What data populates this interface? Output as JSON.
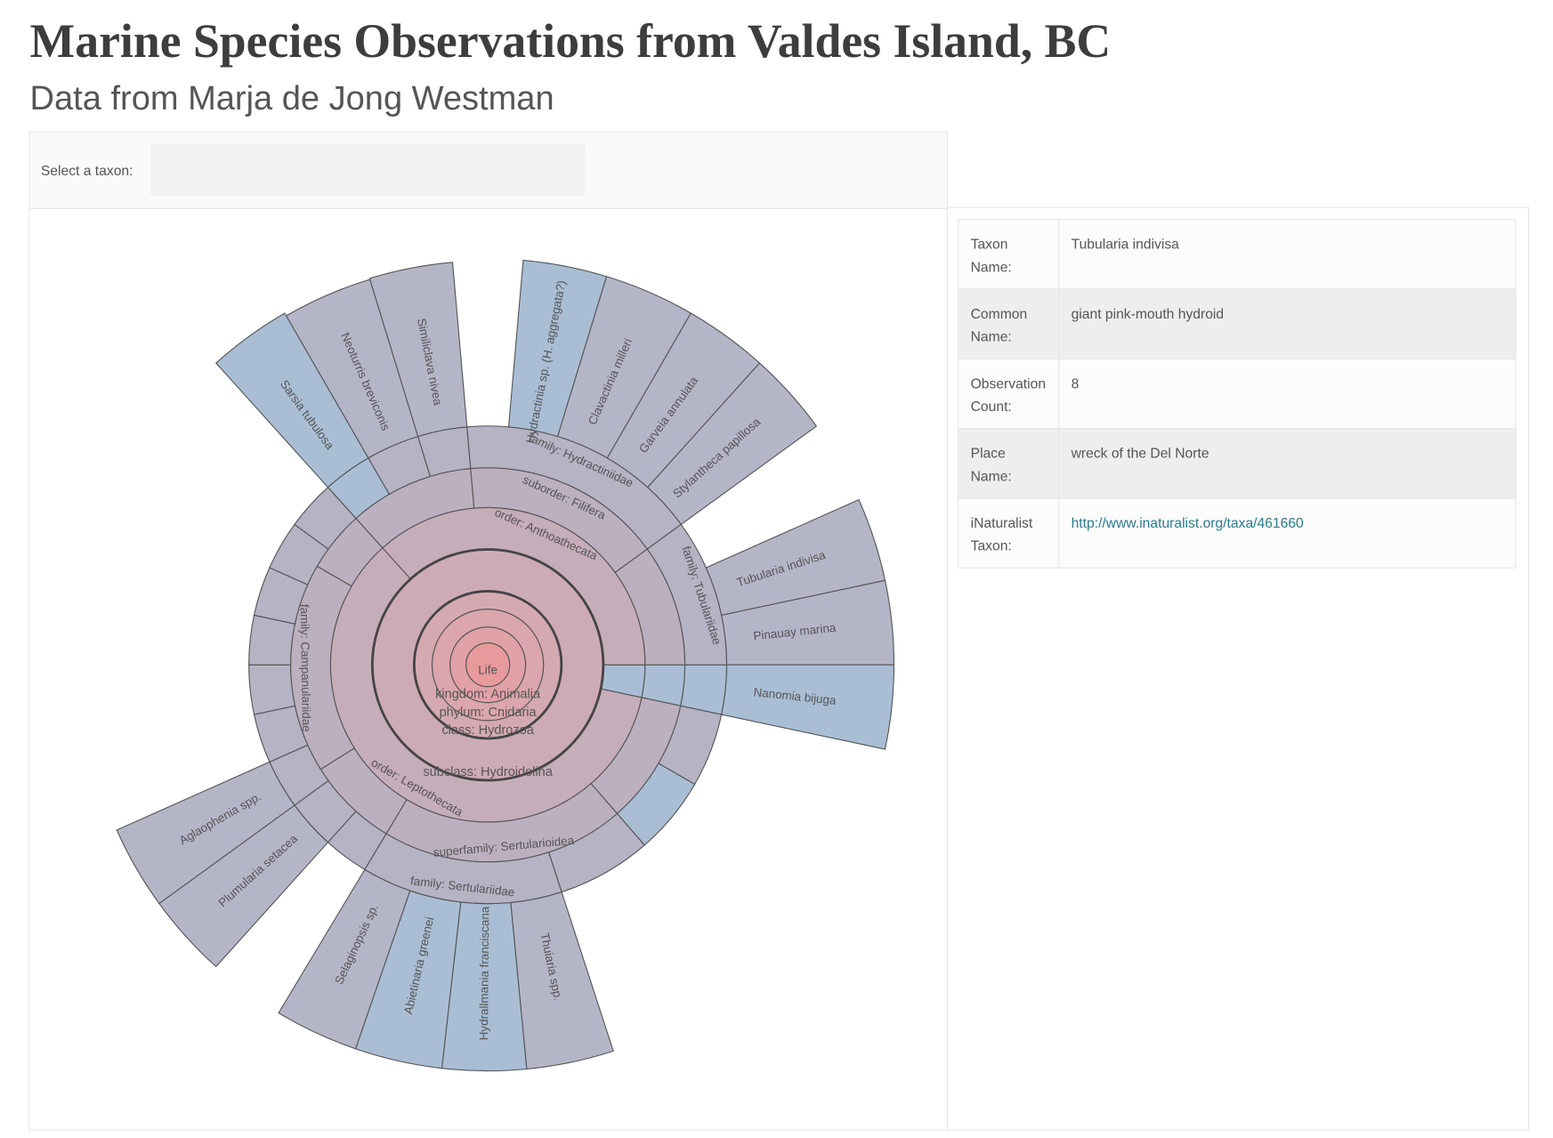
{
  "header": {
    "title": "Marine Species Observations from Valdes Island, BC",
    "subtitle": "Data from Marja de Jong Westman"
  },
  "selector": {
    "label": "Select a taxon:"
  },
  "sunburst": {
    "labels": [
      "Life",
      "kingdom: Animalia",
      "phylum: Cnidaria",
      "class: Hydrozoa",
      "subclass: Hydroidolina",
      "order: Anthoathecata",
      "order: Leptothecata",
      "suborder: Filifera",
      "superfamily: Sertularioidea",
      "family: Campanulariidae",
      "family: Hydractiniidae",
      "family: Tubulariidae",
      "family: Sertulariidae",
      "Sarsia tubulosa",
      "Neoturris breviconis",
      "Similiclava nivea",
      "Hydractinia sp. (H. aggregata?)",
      "Clavactinia milleri",
      "Garveia annulata",
      "Stylantheca papillosa",
      "Tubularia indivisa",
      "Pinauay marina",
      "Nanomia bijuga",
      "Thuiaria spp.",
      "Hydrallmania franciscana",
      "Abietinaria greenei",
      "Selaginopsis sp.",
      "Plumularia setacea",
      "Aglaophenia spp."
    ]
  },
  "details": {
    "rows": [
      {
        "key": "Taxon Name:",
        "value": "Tubularia indivisa"
      },
      {
        "key": "Common Name:",
        "value": "giant pink-mouth hydroid"
      },
      {
        "key": "Observation Count:",
        "value": "8"
      },
      {
        "key": "Place Name:",
        "value": "wreck of the Del Norte"
      },
      {
        "key": "iNaturalist Taxon:",
        "value": "http://www.inaturalist.org/taxa/461660"
      }
    ]
  }
}
